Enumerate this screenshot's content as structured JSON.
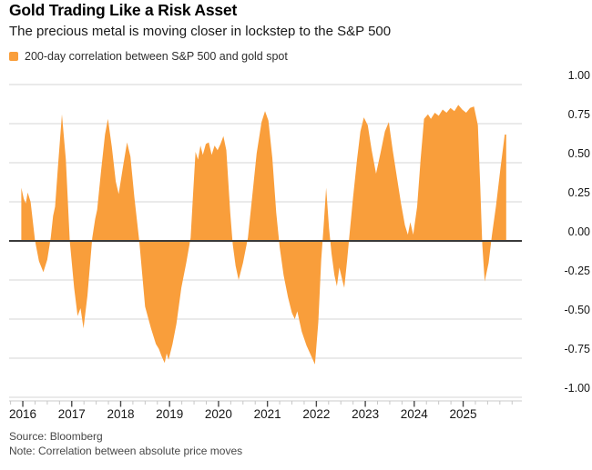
{
  "header": {
    "title": "Gold Trading Like a Risk Asset",
    "subtitle": "The precious metal is moving closer in lockstep to the S&P 500"
  },
  "legend": {
    "label": "200-day correlation between S&P 500 and gold spot",
    "swatch_color": "#F99E3B"
  },
  "footer": {
    "source": "Source: Bloomberg",
    "note": "Note: Correlation between absolute price moves"
  },
  "chart_data": {
    "type": "area",
    "title": "Gold Trading Like a Risk Asset",
    "xlabel": "",
    "ylabel": "",
    "legend_position": "top-left",
    "grid": "horizontal",
    "axis_label_side": "right",
    "ylim": [
      -1.0,
      1.0
    ],
    "xlim": [
      2015.72,
      2026.2
    ],
    "y_ticks": [
      {
        "v": 1.0,
        "label": "1.00"
      },
      {
        "v": 0.75,
        "label": "0.75"
      },
      {
        "v": 0.5,
        "label": "0.50"
      },
      {
        "v": 0.25,
        "label": "0.25"
      },
      {
        "v": 0.0,
        "label": "0.00"
      },
      {
        "v": -0.25,
        "label": "-0.25"
      },
      {
        "v": -0.5,
        "label": "-0.50"
      },
      {
        "v": -0.75,
        "label": "-0.75"
      },
      {
        "v": -1.0,
        "label": "-1.00"
      }
    ],
    "x_major_ticks": [
      2016,
      2017,
      2018,
      2019,
      2020,
      2021,
      2022,
      2023,
      2024,
      2025
    ],
    "x_minor_start": 2015.75,
    "x_minor_end": 2026.0,
    "x_minor_step": 0.25,
    "zero_line": true,
    "colors": {
      "fill": "#F99E3B",
      "gridline": "#DDDDDD",
      "zero_line": "#3A3A3A",
      "axis_line": "#CBCBCB",
      "minor_tick": "#C7C7C7",
      "major_tick": "#4A4A4A"
    },
    "series": [
      {
        "name": "200-day correlation between S&P 500 and gold spot",
        "color": "#F99E3B",
        "points": [
          [
            2015.97,
            0.34
          ],
          [
            2016.02,
            0.27
          ],
          [
            2016.06,
            0.24
          ],
          [
            2016.1,
            0.31
          ],
          [
            2016.16,
            0.25
          ],
          [
            2016.25,
            0.0
          ],
          [
            2016.33,
            -0.13
          ],
          [
            2016.42,
            -0.2
          ],
          [
            2016.5,
            -0.12
          ],
          [
            2016.57,
            0.02
          ],
          [
            2016.62,
            0.16
          ],
          [
            2016.66,
            0.22
          ],
          [
            2016.72,
            0.48
          ],
          [
            2016.8,
            0.81
          ],
          [
            2016.88,
            0.52
          ],
          [
            2016.96,
            0.0
          ],
          [
            2017.05,
            -0.3
          ],
          [
            2017.12,
            -0.48
          ],
          [
            2017.18,
            -0.43
          ],
          [
            2017.24,
            -0.56
          ],
          [
            2017.32,
            -0.35
          ],
          [
            2017.42,
            0.02
          ],
          [
            2017.48,
            0.14
          ],
          [
            2017.52,
            0.2
          ],
          [
            2017.6,
            0.45
          ],
          [
            2017.68,
            0.68
          ],
          [
            2017.74,
            0.78
          ],
          [
            2017.82,
            0.6
          ],
          [
            2017.9,
            0.38
          ],
          [
            2017.96,
            0.3
          ],
          [
            2018.05,
            0.48
          ],
          [
            2018.13,
            0.63
          ],
          [
            2018.2,
            0.54
          ],
          [
            2018.28,
            0.28
          ],
          [
            2018.38,
            0.0
          ],
          [
            2018.5,
            -0.42
          ],
          [
            2018.62,
            -0.56
          ],
          [
            2018.72,
            -0.66
          ],
          [
            2018.78,
            -0.69
          ],
          [
            2018.84,
            -0.74
          ],
          [
            2018.9,
            -0.78
          ],
          [
            2018.94,
            -0.72
          ],
          [
            2018.98,
            -0.76
          ],
          [
            2019.06,
            -0.66
          ],
          [
            2019.14,
            -0.53
          ],
          [
            2019.24,
            -0.3
          ],
          [
            2019.34,
            -0.14
          ],
          [
            2019.43,
            0.02
          ],
          [
            2019.48,
            0.3
          ],
          [
            2019.53,
            0.57
          ],
          [
            2019.58,
            0.52
          ],
          [
            2019.63,
            0.61
          ],
          [
            2019.68,
            0.55
          ],
          [
            2019.74,
            0.62
          ],
          [
            2019.8,
            0.63
          ],
          [
            2019.86,
            0.55
          ],
          [
            2019.92,
            0.61
          ],
          [
            2019.98,
            0.58
          ],
          [
            2020.04,
            0.62
          ],
          [
            2020.1,
            0.67
          ],
          [
            2020.16,
            0.58
          ],
          [
            2020.24,
            0.18
          ],
          [
            2020.29,
            -0.02
          ],
          [
            2020.35,
            -0.16
          ],
          [
            2020.41,
            -0.25
          ],
          [
            2020.5,
            -0.14
          ],
          [
            2020.6,
            0.02
          ],
          [
            2020.68,
            0.26
          ],
          [
            2020.78,
            0.56
          ],
          [
            2020.88,
            0.76
          ],
          [
            2020.95,
            0.83
          ],
          [
            2021.02,
            0.77
          ],
          [
            2021.1,
            0.53
          ],
          [
            2021.18,
            0.18
          ],
          [
            2021.25,
            -0.04
          ],
          [
            2021.33,
            -0.22
          ],
          [
            2021.42,
            -0.36
          ],
          [
            2021.5,
            -0.46
          ],
          [
            2021.56,
            -0.5
          ],
          [
            2021.61,
            -0.45
          ],
          [
            2021.7,
            -0.58
          ],
          [
            2021.8,
            -0.67
          ],
          [
            2021.9,
            -0.74
          ],
          [
            2021.97,
            -0.79
          ],
          [
            2022.04,
            -0.52
          ],
          [
            2022.1,
            -0.12
          ],
          [
            2022.15,
            0.1
          ],
          [
            2022.2,
            0.34
          ],
          [
            2022.26,
            0.08
          ],
          [
            2022.31,
            -0.08
          ],
          [
            2022.37,
            -0.22
          ],
          [
            2022.42,
            -0.29
          ],
          [
            2022.47,
            -0.17
          ],
          [
            2022.53,
            -0.25
          ],
          [
            2022.57,
            -0.3
          ],
          [
            2022.63,
            -0.12
          ],
          [
            2022.68,
            0.05
          ],
          [
            2022.75,
            0.28
          ],
          [
            2022.83,
            0.52
          ],
          [
            2022.9,
            0.7
          ],
          [
            2022.97,
            0.79
          ],
          [
            2023.05,
            0.74
          ],
          [
            2023.13,
            0.58
          ],
          [
            2023.22,
            0.43
          ],
          [
            2023.31,
            0.56
          ],
          [
            2023.4,
            0.7
          ],
          [
            2023.48,
            0.76
          ],
          [
            2023.56,
            0.58
          ],
          [
            2023.65,
            0.4
          ],
          [
            2023.73,
            0.24
          ],
          [
            2023.81,
            0.1
          ],
          [
            2023.87,
            0.04
          ],
          [
            2023.92,
            0.12
          ],
          [
            2023.98,
            0.04
          ],
          [
            2024.06,
            0.22
          ],
          [
            2024.13,
            0.52
          ],
          [
            2024.2,
            0.78
          ],
          [
            2024.28,
            0.81
          ],
          [
            2024.34,
            0.78
          ],
          [
            2024.42,
            0.82
          ],
          [
            2024.5,
            0.8
          ],
          [
            2024.58,
            0.84
          ],
          [
            2024.66,
            0.82
          ],
          [
            2024.74,
            0.85
          ],
          [
            2024.82,
            0.83
          ],
          [
            2024.9,
            0.87
          ],
          [
            2024.98,
            0.84
          ],
          [
            2025.06,
            0.82
          ],
          [
            2025.14,
            0.85
          ],
          [
            2025.22,
            0.86
          ],
          [
            2025.3,
            0.74
          ],
          [
            2025.35,
            0.35
          ],
          [
            2025.39,
            -0.02
          ],
          [
            2025.44,
            -0.26
          ],
          [
            2025.52,
            -0.14
          ],
          [
            2025.59,
            0.04
          ],
          [
            2025.67,
            0.22
          ],
          [
            2025.76,
            0.46
          ],
          [
            2025.85,
            0.68
          ],
          [
            2025.88,
            0.68
          ]
        ]
      }
    ]
  }
}
